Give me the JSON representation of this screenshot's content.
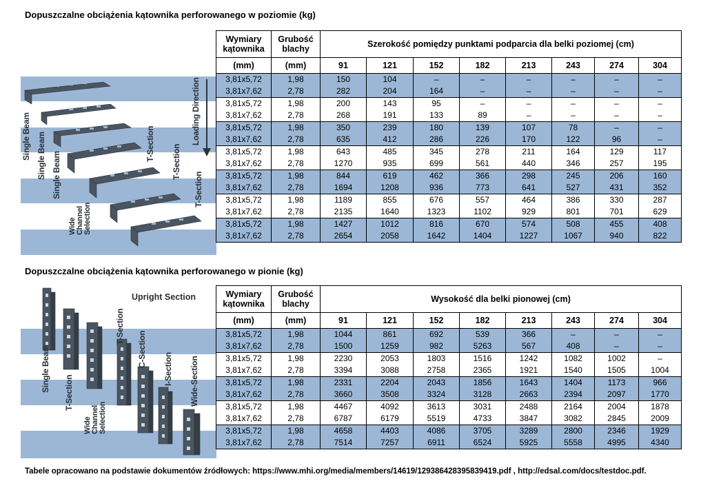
{
  "horizontal": {
    "title": "Dopuszczalne obciążenia kątownika perforowanego w poziomie (kg)",
    "headers": {
      "dim": "Wymiary kątownika",
      "thick": "Grubość blachy",
      "span": "Szerokość pomiędzy punktami podparcia dla belki poziomej (cm)",
      "dim_unit": "(mm)",
      "thick_unit": "(mm)"
    },
    "columns": [
      "91",
      "121",
      "152",
      "182",
      "213",
      "243",
      "274",
      "304"
    ],
    "illustration_labels": [
      "Single Beam",
      "Single Beam",
      "Single Beam",
      "Wide Channel Selection",
      "T-Section",
      "T-Section",
      "T-Section",
      "Loading Direction"
    ],
    "rows": [
      [
        "3,81x5,72",
        "1,98",
        "150",
        "104",
        "–",
        "–",
        "–",
        "–",
        "–",
        "–"
      ],
      [
        "3,81x7,62",
        "2,78",
        "282",
        "204",
        "164",
        "–",
        "–",
        "–",
        "–",
        "–"
      ],
      [
        "3,81x5,72",
        "1,98",
        "200",
        "143",
        "95",
        "–",
        "–",
        "–",
        "–",
        "–"
      ],
      [
        "3,81x7,62",
        "2,78",
        "268",
        "191",
        "133",
        "89",
        "–",
        "–",
        "–",
        "–"
      ],
      [
        "3,81x5,72",
        "1,98",
        "350",
        "239",
        "180",
        "139",
        "107",
        "78",
        "–",
        "–"
      ],
      [
        "3,81x7,62",
        "2,78",
        "635",
        "412",
        "286",
        "226",
        "170",
        "122",
        "96",
        "–"
      ],
      [
        "3,81x5,72",
        "1,98",
        "643",
        "485",
        "345",
        "278",
        "211",
        "164",
        "129",
        "117"
      ],
      [
        "3,81x7,62",
        "2,78",
        "1270",
        "935",
        "699",
        "561",
        "440",
        "346",
        "257",
        "195"
      ],
      [
        "3,81x5,72",
        "1,98",
        "844",
        "619",
        "462",
        "366",
        "298",
        "245",
        "206",
        "160"
      ],
      [
        "3,81x7,62",
        "2,78",
        "1694",
        "1208",
        "936",
        "773",
        "641",
        "527",
        "431",
        "352"
      ],
      [
        "3,81x5,72",
        "1,98",
        "1189",
        "855",
        "676",
        "557",
        "464",
        "386",
        "330",
        "287"
      ],
      [
        "3,81x7,62",
        "2,78",
        "2135",
        "1640",
        "1323",
        "1102",
        "929",
        "801",
        "701",
        "629"
      ],
      [
        "3,81x5,72",
        "1,98",
        "1427",
        "1012",
        "816",
        "670",
        "574",
        "508",
        "455",
        "408"
      ],
      [
        "3,81x7,62",
        "2,78",
        "2654",
        "2058",
        "1642",
        "1404",
        "1227",
        "1067",
        "940",
        "822"
      ]
    ]
  },
  "vertical": {
    "title": "Dopuszczalne obciążenia kątownika perforowanego w pionie (kg)",
    "headers": {
      "dim": "Wymiary kątownika",
      "thick": "Grubość blachy",
      "span": "Wysokość dla belki pionowej (cm)",
      "dim_unit": "(mm)",
      "thick_unit": "(mm)"
    },
    "columns": [
      "91",
      "121",
      "152",
      "182",
      "213",
      "243",
      "274",
      "304"
    ],
    "illustration_labels": [
      "Upright Section",
      "Single Beam",
      "T-Section",
      "Wide Channel Selection",
      "T-Section",
      "C-Section",
      "I-Section",
      "Wide-Section"
    ],
    "rows": [
      [
        "3,81x5,72",
        "1,98",
        "1044",
        "861",
        "692",
        "539",
        "366",
        "–",
        "–",
        "–"
      ],
      [
        "3,81x7,62",
        "2,78",
        "1500",
        "1259",
        "982",
        "5263",
        "567",
        "408",
        "–",
        "–"
      ],
      [
        "3,81x5,72",
        "1,98",
        "2230",
        "2053",
        "1803",
        "1516",
        "1242",
        "1082",
        "1002",
        "–"
      ],
      [
        "3,81x7,62",
        "2,78",
        "3394",
        "3088",
        "2758",
        "2365",
        "1921",
        "1540",
        "1505",
        "1004"
      ],
      [
        "3,81x5,72",
        "1,98",
        "2331",
        "2204",
        "2043",
        "1856",
        "1643",
        "1404",
        "1173",
        "966"
      ],
      [
        "3,81x7,62",
        "2,78",
        "3660",
        "3508",
        "3324",
        "3128",
        "2663",
        "2394",
        "2097",
        "1770"
      ],
      [
        "3,81x5,72",
        "1,98",
        "4467",
        "4092",
        "3613",
        "3031",
        "2488",
        "2164",
        "2004",
        "1878"
      ],
      [
        "3,81x7,62",
        "2,78",
        "6787",
        "6179",
        "5519",
        "4733",
        "3847",
        "3082",
        "2845",
        "2009"
      ],
      [
        "3,81x5,72",
        "1,98",
        "4658",
        "4403",
        "4086",
        "3705",
        "3289",
        "2800",
        "2346",
        "1929"
      ],
      [
        "3,81x7,62",
        "2,78",
        "7514",
        "7257",
        "6911",
        "6524",
        "5925",
        "5558",
        "4995",
        "4340"
      ]
    ]
  },
  "footer": "Tabele opracowano na podstawie dokumentów źródłowych: https://www.mhi.org/media/members/14619/129386428395839419.pdf , http://edsal.com/docs/testdoc.pdf.",
  "colors": {
    "band_blue": "#9cb7d6",
    "steel": "#4a5560"
  }
}
